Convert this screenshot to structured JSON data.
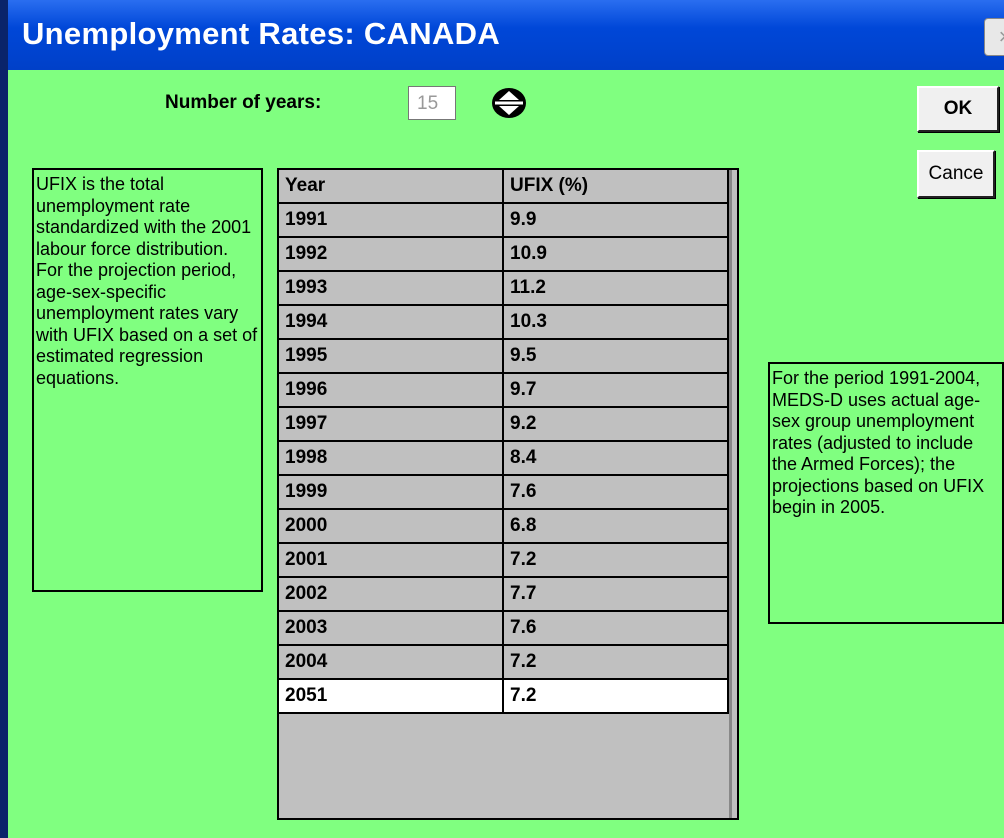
{
  "window": {
    "title": "Unemployment Rates: CANADA",
    "close": "×"
  },
  "controls": {
    "years_label": "Number of years:",
    "years_value": "15",
    "ok": "OK",
    "cancel": "Cance"
  },
  "notes": {
    "left": "UFIX is the total unemployment rate standardized with the 2001 labour force distribution.  For the projection period, age-sex-specific unemployment rates vary with UFIX based on a set of estimated regression equations.",
    "right": "For the period 1991-2004, MEDS-D uses actual age-sex group unemployment rates (adjusted to include the Armed Forces); the projections based on UFIX begin in 2005."
  },
  "table": {
    "header": [
      "Year",
      "UFIX (%)"
    ],
    "rows": [
      [
        1991,
        9.9
      ],
      [
        1992,
        10.9
      ],
      [
        1993,
        11.2
      ],
      [
        1994,
        10.3
      ],
      [
        1995,
        9.5
      ],
      [
        1996,
        9.7
      ],
      [
        1997,
        9.2
      ],
      [
        1998,
        8.4
      ],
      [
        1999,
        7.6
      ],
      [
        2000,
        6.8
      ],
      [
        2001,
        7.2
      ],
      [
        2002,
        7.7
      ],
      [
        2003,
        7.6
      ],
      [
        2004,
        7.2
      ],
      [
        2051,
        7.2
      ]
    ]
  }
}
